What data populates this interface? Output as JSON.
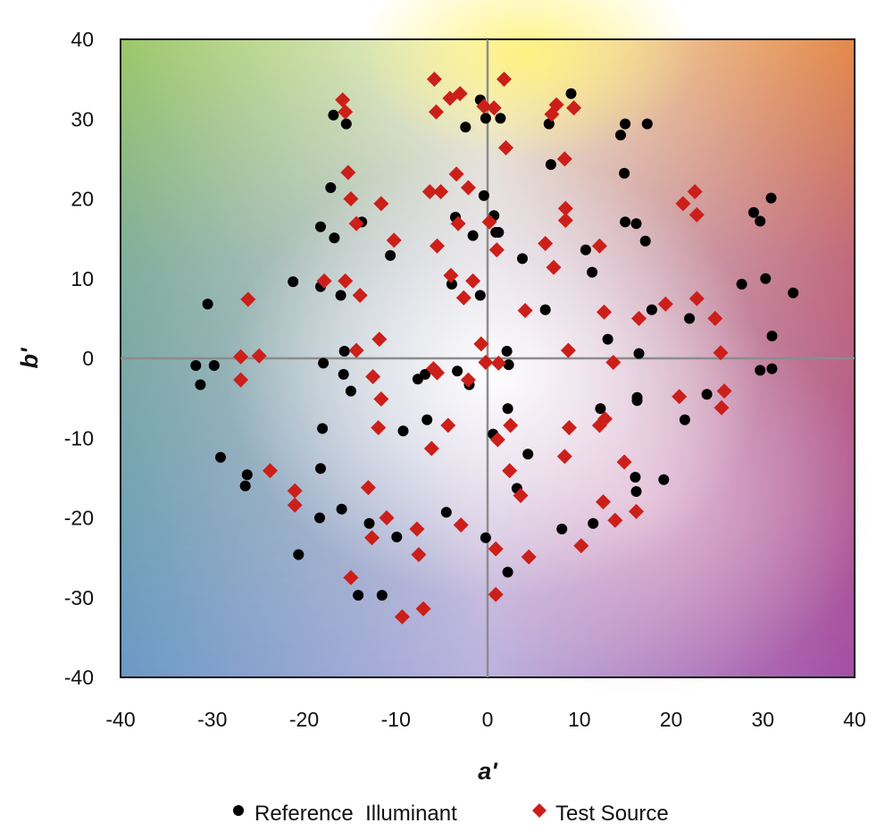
{
  "chart_data": {
    "type": "scatter",
    "xlabel": "a'",
    "ylabel": "b'",
    "xlim": [
      -40,
      40
    ],
    "ylim": [
      -40,
      40
    ],
    "xticks": [
      -40,
      -30,
      -20,
      -10,
      0,
      10,
      20,
      30,
      40
    ],
    "yticks": [
      -40,
      -30,
      -20,
      -10,
      0,
      10,
      20,
      30,
      40
    ],
    "xtick_labels": [
      "-40",
      "-30",
      "-20",
      "-10",
      "0",
      "10",
      "20",
      "30",
      "40"
    ],
    "ytick_labels": [
      "-40",
      "-30",
      "-20",
      "-10",
      "0",
      "10",
      "20",
      "30",
      "40"
    ],
    "grid": false,
    "background": "hue gradient (a'-b' color plane)",
    "legend_position": "bottom",
    "colors": {
      "reference": "#000000",
      "test": "#cc1f1a",
      "axes": "#8c8c8c"
    },
    "series": [
      {
        "name": "Reference  Illuminant",
        "marker": "circle",
        "points": [
          [
            9.1,
            33.2
          ],
          [
            -0.8,
            32.4
          ],
          [
            -16.8,
            30.5
          ],
          [
            -15.4,
            29.4
          ],
          [
            -0.2,
            30.1
          ],
          [
            1.4,
            30.1
          ],
          [
            -2.4,
            29.0
          ],
          [
            6.7,
            29.4
          ],
          [
            15.0,
            29.4
          ],
          [
            17.4,
            29.4
          ],
          [
            14.5,
            28.0
          ],
          [
            6.9,
            24.3
          ],
          [
            14.9,
            23.2
          ],
          [
            -17.1,
            21.4
          ],
          [
            -0.4,
            20.4
          ],
          [
            30.9,
            20.1
          ],
          [
            29.0,
            18.3
          ],
          [
            -3.5,
            17.7
          ],
          [
            0.7,
            17.9
          ],
          [
            -13.7,
            17.1
          ],
          [
            15.0,
            17.1
          ],
          [
            16.2,
            16.9
          ],
          [
            29.7,
            17.2
          ],
          [
            -18.2,
            16.5
          ],
          [
            0.9,
            15.8
          ],
          [
            -1.6,
            15.4
          ],
          [
            1.2,
            15.8
          ],
          [
            -16.7,
            15.1
          ],
          [
            17.2,
            14.7
          ],
          [
            10.7,
            13.6
          ],
          [
            -10.6,
            12.9
          ],
          [
            3.8,
            12.5
          ],
          [
            11.4,
            10.8
          ],
          [
            30.3,
            10.0
          ],
          [
            -21.2,
            9.6
          ],
          [
            27.7,
            9.3
          ],
          [
            -18.2,
            9.0
          ],
          [
            -3.9,
            9.3
          ],
          [
            -16.0,
            7.9
          ],
          [
            -0.8,
            7.9
          ],
          [
            33.3,
            8.2
          ],
          [
            -30.5,
            6.8
          ],
          [
            6.3,
            6.1
          ],
          [
            17.9,
            6.1
          ],
          [
            22.0,
            5.0
          ],
          [
            13.1,
            2.4
          ],
          [
            31.0,
            2.8
          ],
          [
            -15.6,
            0.9
          ],
          [
            2.1,
            0.9
          ],
          [
            16.5,
            0.6
          ],
          [
            2.3,
            -0.8
          ],
          [
            -31.8,
            -0.9
          ],
          [
            -29.8,
            -0.9
          ],
          [
            29.7,
            -1.5
          ],
          [
            31.0,
            -1.3
          ],
          [
            -17.9,
            -0.6
          ],
          [
            -15.7,
            -2.0
          ],
          [
            -6.8,
            -2.0
          ],
          [
            -7.6,
            -2.6
          ],
          [
            -2.0,
            -3.3
          ],
          [
            -3.3,
            -1.6
          ],
          [
            -31.3,
            -3.3
          ],
          [
            -14.9,
            -4.1
          ],
          [
            23.9,
            -4.5
          ],
          [
            16.3,
            -4.9
          ],
          [
            16.3,
            -5.3
          ],
          [
            2.2,
            -6.3
          ],
          [
            12.3,
            -6.3
          ],
          [
            -6.6,
            -7.7
          ],
          [
            21.5,
            -7.7
          ],
          [
            -18.0,
            -8.8
          ],
          [
            -9.2,
            -9.1
          ],
          [
            0.6,
            -9.5
          ],
          [
            4.4,
            -12.0
          ],
          [
            -29.1,
            -12.4
          ],
          [
            -18.2,
            -13.8
          ],
          [
            -26.2,
            -14.6
          ],
          [
            16.1,
            -14.9
          ],
          [
            19.2,
            -15.2
          ],
          [
            -26.4,
            -16.0
          ],
          [
            3.2,
            -16.3
          ],
          [
            16.2,
            -16.7
          ],
          [
            -15.9,
            -18.9
          ],
          [
            -4.5,
            -19.3
          ],
          [
            -18.3,
            -20.0
          ],
          [
            -12.9,
            -20.7
          ],
          [
            11.5,
            -20.7
          ],
          [
            8.1,
            -21.4
          ],
          [
            -9.9,
            -22.4
          ],
          [
            -0.2,
            -22.5
          ],
          [
            -20.6,
            -24.6
          ],
          [
            2.2,
            -26.8
          ],
          [
            -14.1,
            -29.7
          ],
          [
            -11.5,
            -29.7
          ]
        ]
      },
      {
        "name": "Test Source",
        "marker": "diamond",
        "points": [
          [
            -5.8,
            35.0
          ],
          [
            1.8,
            35.0
          ],
          [
            -15.8,
            32.4
          ],
          [
            -3.0,
            33.2
          ],
          [
            -4.1,
            32.6
          ],
          [
            -0.4,
            31.6
          ],
          [
            0.7,
            31.4
          ],
          [
            7.5,
            31.8
          ],
          [
            9.4,
            31.4
          ],
          [
            -15.5,
            30.9
          ],
          [
            -5.6,
            30.9
          ],
          [
            7.0,
            30.6
          ],
          [
            2.0,
            26.4
          ],
          [
            8.4,
            25.0
          ],
          [
            -15.2,
            23.3
          ],
          [
            -3.4,
            23.1
          ],
          [
            -2.1,
            21.4
          ],
          [
            22.6,
            20.9
          ],
          [
            -6.3,
            20.9
          ],
          [
            -5.1,
            20.9
          ],
          [
            -14.9,
            20.0
          ],
          [
            21.3,
            19.4
          ],
          [
            -11.6,
            19.4
          ],
          [
            8.5,
            18.8
          ],
          [
            22.8,
            18.0
          ],
          [
            8.5,
            17.3
          ],
          [
            0.2,
            17.1
          ],
          [
            -3.2,
            16.9
          ],
          [
            -14.3,
            16.9
          ],
          [
            -10.2,
            14.8
          ],
          [
            6.3,
            14.4
          ],
          [
            -5.5,
            14.1
          ],
          [
            12.2,
            14.1
          ],
          [
            1.0,
            13.6
          ],
          [
            7.2,
            11.4
          ],
          [
            -4.0,
            10.4
          ],
          [
            -17.8,
            9.7
          ],
          [
            -15.5,
            9.7
          ],
          [
            -1.6,
            9.7
          ],
          [
            -13.9,
            7.9
          ],
          [
            -2.6,
            7.6
          ],
          [
            -26.1,
            7.4
          ],
          [
            22.8,
            7.5
          ],
          [
            19.4,
            6.8
          ],
          [
            4.1,
            6.0
          ],
          [
            12.7,
            5.8
          ],
          [
            16.5,
            5.0
          ],
          [
            24.8,
            5.0
          ],
          [
            -11.8,
            2.4
          ],
          [
            -0.7,
            1.8
          ],
          [
            -14.3,
            1.0
          ],
          [
            8.8,
            1.0
          ],
          [
            25.4,
            0.7
          ],
          [
            -26.9,
            0.2
          ],
          [
            -24.9,
            0.3
          ],
          [
            -0.2,
            -0.5
          ],
          [
            1.2,
            -0.6
          ],
          [
            13.7,
            -0.5
          ],
          [
            -5.9,
            -1.3
          ],
          [
            -5.5,
            -1.8
          ],
          [
            -12.5,
            -2.3
          ],
          [
            -2.1,
            -2.7
          ],
          [
            -26.9,
            -2.7
          ],
          [
            25.8,
            -4.1
          ],
          [
            20.9,
            -4.8
          ],
          [
            -11.6,
            -5.1
          ],
          [
            25.5,
            -6.2
          ],
          [
            12.8,
            -7.6
          ],
          [
            12.2,
            -8.4
          ],
          [
            2.5,
            -8.4
          ],
          [
            -4.3,
            -8.4
          ],
          [
            -11.9,
            -8.7
          ],
          [
            8.9,
            -8.7
          ],
          [
            1.1,
            -10.2
          ],
          [
            -6.1,
            -11.3
          ],
          [
            8.4,
            -12.3
          ],
          [
            14.9,
            -13.0
          ],
          [
            -23.7,
            -14.1
          ],
          [
            2.4,
            -14.1
          ],
          [
            -13.0,
            -16.2
          ],
          [
            -21.0,
            -16.6
          ],
          [
            3.6,
            -17.2
          ],
          [
            12.6,
            -18.0
          ],
          [
            -21.0,
            -18.4
          ],
          [
            16.2,
            -19.2
          ],
          [
            -11.0,
            -20.0
          ],
          [
            13.9,
            -20.3
          ],
          [
            -2.9,
            -20.9
          ],
          [
            -7.7,
            -21.4
          ],
          [
            -12.6,
            -22.5
          ],
          [
            10.2,
            -23.5
          ],
          [
            0.9,
            -23.9
          ],
          [
            -7.5,
            -24.6
          ],
          [
            4.5,
            -24.9
          ],
          [
            -14.9,
            -27.5
          ],
          [
            0.9,
            -29.6
          ],
          [
            -7.0,
            -31.4
          ],
          [
            -9.3,
            -32.4
          ]
        ]
      }
    ]
  }
}
